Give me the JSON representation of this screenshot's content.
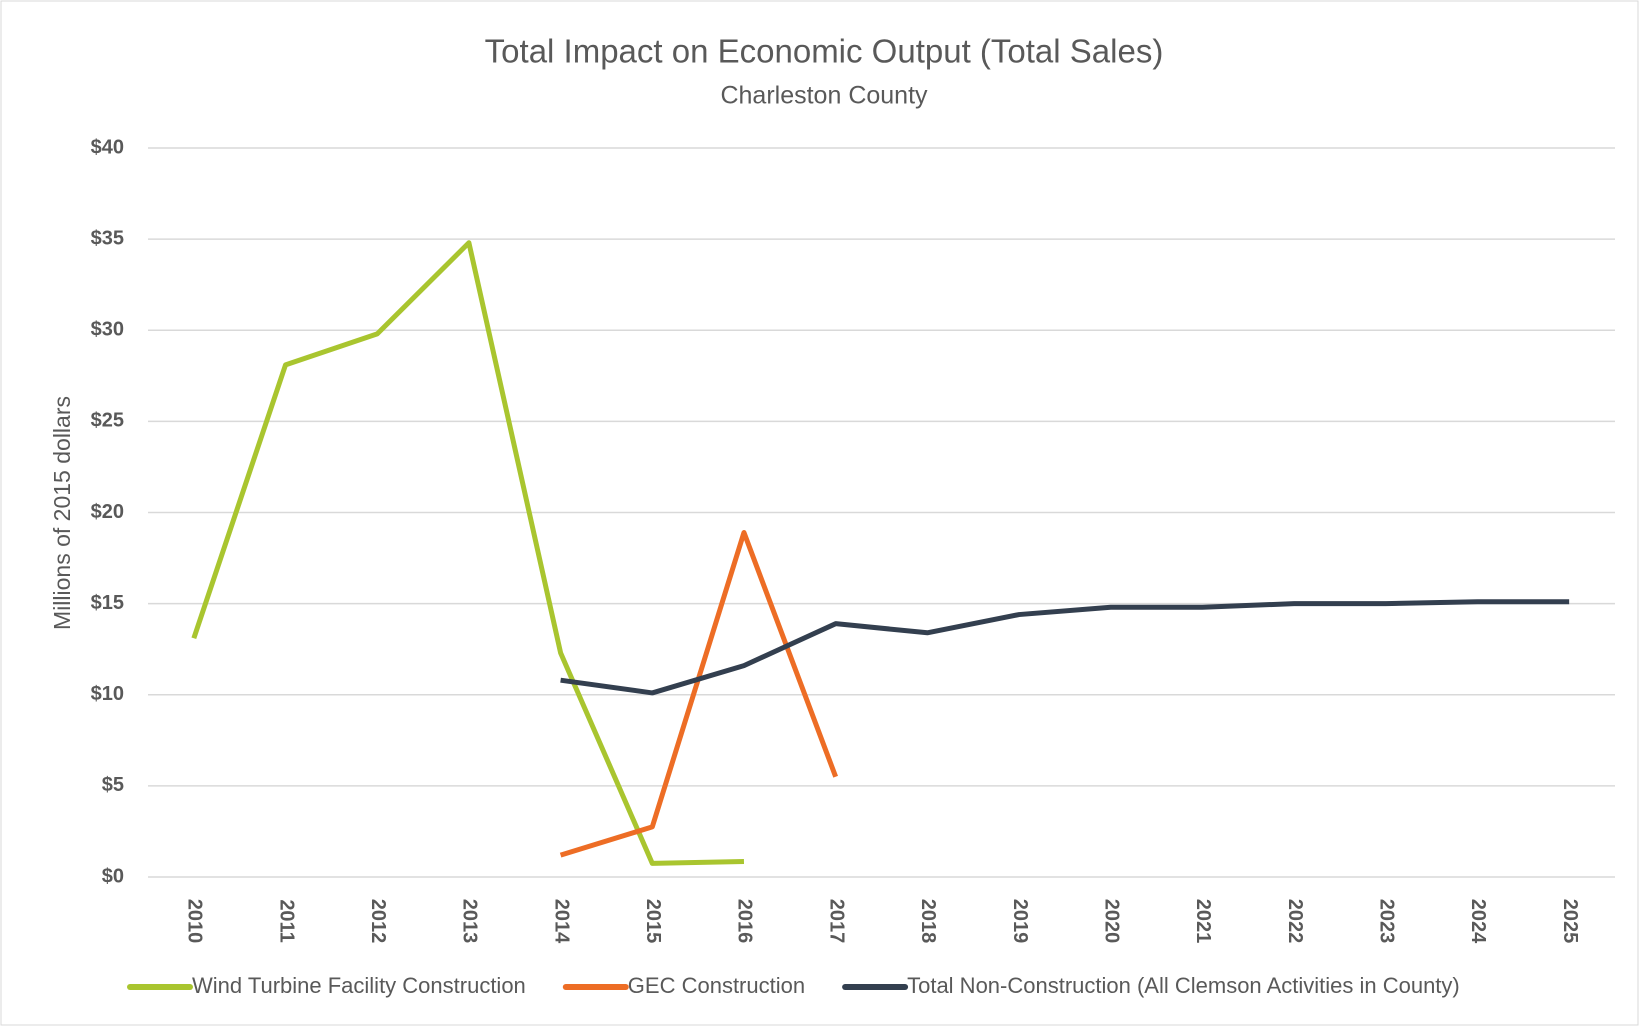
{
  "chart_data": {
    "type": "line",
    "title": "Total Impact on Economic Output (Total Sales)",
    "subtitle": "Charleston County",
    "y_label": "Millions of 2015 dollars",
    "categories": [
      "2010",
      "2011",
      "2012",
      "2013",
      "2014",
      "2015",
      "2016",
      "2017",
      "2018",
      "2019",
      "2020",
      "2021",
      "2022",
      "2023",
      "2024",
      "2025"
    ],
    "series": [
      {
        "name": "Wind Turbine Facility Construction",
        "color": "#a9c52f",
        "values": [
          13.1,
          28.1,
          29.8,
          34.8,
          12.3,
          0.75,
          0.85,
          null,
          null,
          null,
          null,
          null,
          null,
          null,
          null,
          null
        ]
      },
      {
        "name": "GEC Construction",
        "color": "#ed6d25",
        "values": [
          null,
          null,
          null,
          null,
          1.2,
          2.75,
          18.9,
          5.5,
          null,
          null,
          null,
          null,
          null,
          null,
          null,
          null
        ]
      },
      {
        "name": "Total Non-Construction (All Clemson Activities in County)",
        "color": "#333f4f",
        "values": [
          null,
          null,
          null,
          null,
          10.8,
          10.1,
          11.6,
          13.9,
          13.4,
          14.4,
          14.8,
          14.8,
          15.0,
          15.0,
          15.1,
          15.1
        ]
      }
    ],
    "ylim": [
      0,
      40
    ],
    "yticks": [
      {
        "value": 0,
        "label": "$0"
      },
      {
        "value": 5,
        "label": "$5"
      },
      {
        "value": 10,
        "label": "$10"
      },
      {
        "value": 15,
        "label": "$15"
      },
      {
        "value": 20,
        "label": "$20"
      },
      {
        "value": 25,
        "label": "$25"
      },
      {
        "value": 30,
        "label": "$30"
      },
      {
        "value": 35,
        "label": "$35"
      },
      {
        "value": 40,
        "label": "$40"
      }
    ],
    "grid": true,
    "legend": "bottom"
  }
}
